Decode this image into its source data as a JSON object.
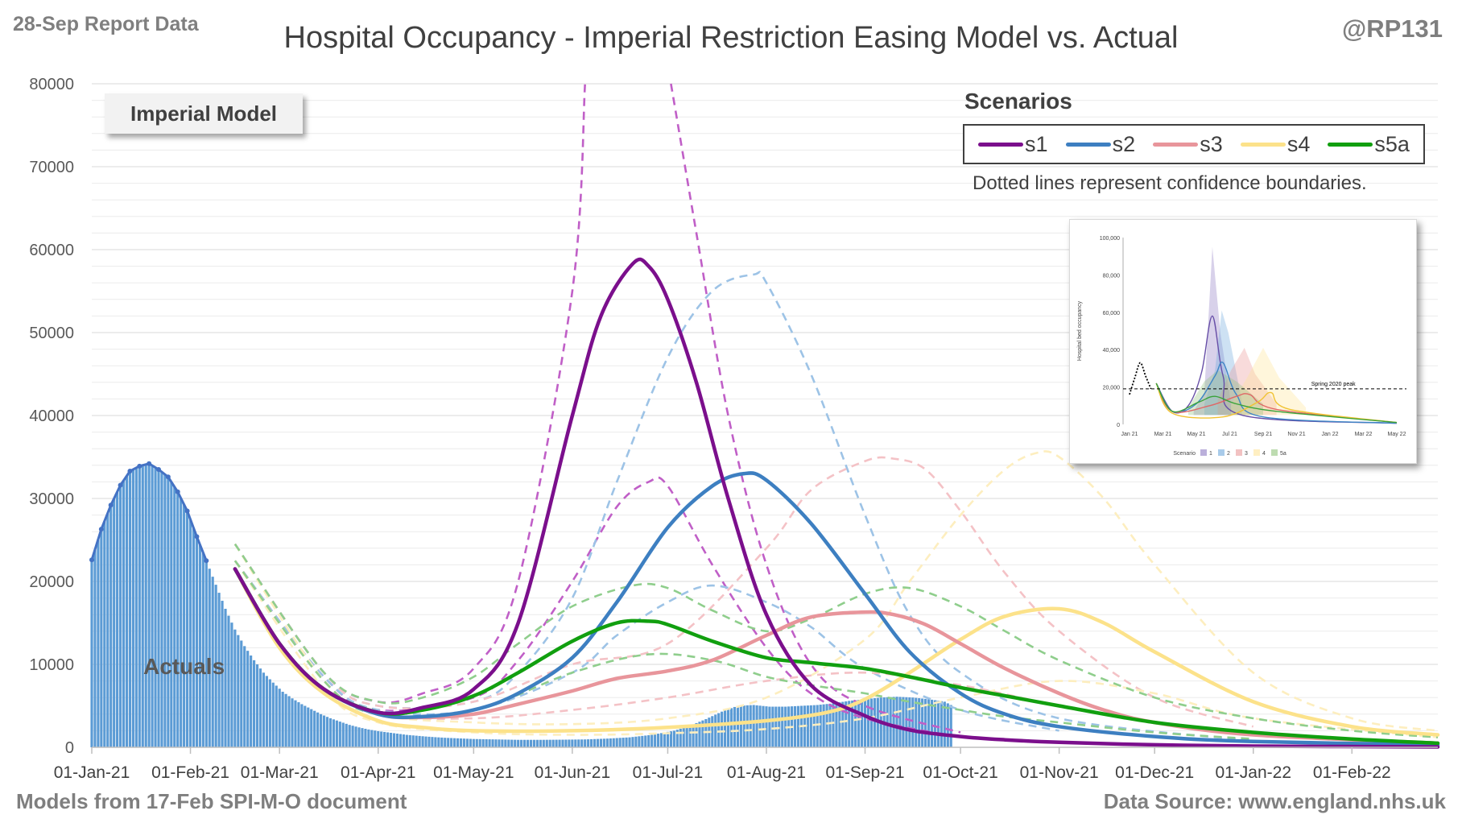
{
  "header": {
    "report_label": "28-Sep Report Data",
    "title": "Hospital Occupancy - Imperial Restriction Easing Model vs. Actual",
    "handle": "@RP131"
  },
  "footer": {
    "models_note": "Models from 17-Feb SPI-M-O document",
    "data_source": "Data Source: www.england.nhs.uk"
  },
  "annotations": {
    "model_badge": "Imperial Model",
    "actuals_label": "Actuals"
  },
  "legend": {
    "title": "Scenarios",
    "note": "Dotted lines represent confidence boundaries.",
    "items": [
      {
        "label": "s1",
        "color": "#7b0f8c"
      },
      {
        "label": "s2",
        "color": "#3d7fc1"
      },
      {
        "label": "s3",
        "color": "#e8959b"
      },
      {
        "label": "s4",
        "color": "#fce28a"
      },
      {
        "label": "s5a",
        "color": "#119f0f"
      }
    ]
  },
  "inset": {
    "ylabel": "Hospital bed occupancy",
    "yticks": [
      "0",
      "20,000",
      "40,000",
      "60,000",
      "80,000",
      "100,000"
    ],
    "xticks": [
      "Jan 21",
      "Mar 21",
      "May 21",
      "Jul 21",
      "Sep 21",
      "Nov 21",
      "Jan 22",
      "Mar 22",
      "May 22"
    ],
    "peak_label": "Spring 2020 peak",
    "legend_title": "Scenario",
    "legend_items": [
      "1",
      "2",
      "3",
      "4",
      "5a"
    ]
  },
  "chart_data": {
    "type": "line",
    "title": "Hospital Occupancy - Imperial Restriction Easing Model vs. Actual",
    "x_type": "date",
    "xlim": [
      "2021-01-01",
      "2022-02-28"
    ],
    "ylim": [
      0,
      80000
    ],
    "y_ticks": [
      0,
      10000,
      20000,
      30000,
      40000,
      50000,
      60000,
      70000,
      80000
    ],
    "x_ticks": [
      {
        "date": "2021-01-01",
        "label": "01-Jan-21"
      },
      {
        "date": "2021-02-01",
        "label": "01-Feb-21"
      },
      {
        "date": "2021-03-01",
        "label": "01-Mar-21"
      },
      {
        "date": "2021-04-01",
        "label": "01-Apr-21"
      },
      {
        "date": "2021-05-01",
        "label": "01-May-21"
      },
      {
        "date": "2021-06-01",
        "label": "01-Jun-21"
      },
      {
        "date": "2021-07-01",
        "label": "01-Jul-21"
      },
      {
        "date": "2021-08-01",
        "label": "01-Aug-21"
      },
      {
        "date": "2021-09-01",
        "label": "01-Sep-21"
      },
      {
        "date": "2021-10-01",
        "label": "01-Oct-21"
      },
      {
        "date": "2021-11-01",
        "label": "01-Nov-21"
      },
      {
        "date": "2021-12-01",
        "label": "01-Dec-21"
      },
      {
        "date": "2022-01-01",
        "label": "01-Jan-22"
      },
      {
        "date": "2022-02-01",
        "label": "01-Feb-22"
      }
    ],
    "grid": true,
    "legend_position": "top-right",
    "actuals": {
      "name": "Actuals",
      "color": "#5b9bd5",
      "dates": [
        "2021-01-01",
        "2021-01-04",
        "2021-01-07",
        "2021-01-10",
        "2021-01-13",
        "2021-01-16",
        "2021-01-19",
        "2021-01-22",
        "2021-01-25",
        "2021-01-28",
        "2021-01-31",
        "2021-02-03",
        "2021-02-06",
        "2021-02-09",
        "2021-02-12",
        "2021-02-15",
        "2021-02-18",
        "2021-02-21",
        "2021-02-24",
        "2021-02-27",
        "2021-03-02",
        "2021-03-05",
        "2021-03-08",
        "2021-03-11",
        "2021-03-14",
        "2021-03-17",
        "2021-03-20",
        "2021-03-23",
        "2021-03-26",
        "2021-03-29",
        "2021-04-01",
        "2021-04-04",
        "2021-04-07",
        "2021-04-10",
        "2021-04-13",
        "2021-04-16",
        "2021-04-19",
        "2021-04-22",
        "2021-04-25",
        "2021-04-28",
        "2021-05-01",
        "2021-05-08",
        "2021-05-15",
        "2021-05-22",
        "2021-05-29",
        "2021-06-05",
        "2021-06-12",
        "2021-06-19",
        "2021-06-26",
        "2021-07-03",
        "2021-07-08",
        "2021-07-13",
        "2021-07-18",
        "2021-07-23",
        "2021-07-28",
        "2021-08-02",
        "2021-08-07",
        "2021-08-12",
        "2021-08-17",
        "2021-08-22",
        "2021-08-27",
        "2021-09-01",
        "2021-09-06",
        "2021-09-11",
        "2021-09-16",
        "2021-09-21",
        "2021-09-26",
        "2021-09-28"
      ],
      "values": [
        22600,
        26300,
        29200,
        31600,
        33300,
        33900,
        34200,
        33500,
        32600,
        30800,
        28500,
        25400,
        22500,
        19600,
        16700,
        14200,
        12200,
        10500,
        9000,
        7800,
        6700,
        5900,
        5200,
        4600,
        4000,
        3500,
        3100,
        2700,
        2400,
        2150,
        1950,
        1800,
        1650,
        1500,
        1400,
        1300,
        1220,
        1150,
        1100,
        1050,
        1000,
        950,
        900,
        900,
        920,
        950,
        1050,
        1200,
        1500,
        2000,
        2600,
        3400,
        4300,
        5000,
        5100,
        4900,
        4900,
        5000,
        5100,
        5300,
        5600,
        5800,
        6000,
        6100,
        6000,
        5800,
        5500,
        5100
      ]
    },
    "series": [
      {
        "name": "s1",
        "color": "#7b0f8c",
        "dates": [
          "2021-02-15",
          "2021-03-01",
          "2021-03-15",
          "2021-04-01",
          "2021-04-15",
          "2021-05-01",
          "2021-05-15",
          "2021-06-01",
          "2021-06-10",
          "2021-06-20",
          "2021-06-25",
          "2021-07-01",
          "2021-07-10",
          "2021-07-20",
          "2021-08-01",
          "2021-08-15",
          "2021-09-01",
          "2021-09-15",
          "2021-10-01",
          "2021-10-15",
          "2021-11-01",
          "2021-12-01",
          "2022-01-01",
          "2022-02-28"
        ],
        "values": [
          21500,
          12500,
          7000,
          4200,
          4800,
          7000,
          15000,
          40000,
          52000,
          58300,
          58000,
          54000,
          44000,
          30000,
          16000,
          7500,
          3800,
          2100,
          1300,
          900,
          600,
          300,
          150,
          50
        ]
      },
      {
        "name": "s2",
        "color": "#3d7fc1",
        "dates": [
          "2021-02-15",
          "2021-03-01",
          "2021-03-15",
          "2021-04-01",
          "2021-04-15",
          "2021-05-01",
          "2021-05-15",
          "2021-06-01",
          "2021-06-15",
          "2021-07-01",
          "2021-07-15",
          "2021-07-25",
          "2021-08-01",
          "2021-08-15",
          "2021-09-01",
          "2021-09-15",
          "2021-10-01",
          "2021-10-15",
          "2021-11-01",
          "2021-12-01",
          "2022-01-01",
          "2022-02-28"
        ],
        "values": [
          21500,
          12500,
          7000,
          4000,
          3700,
          4500,
          6500,
          10800,
          17500,
          26500,
          31500,
          33000,
          32200,
          27000,
          18500,
          11500,
          6500,
          4000,
          2500,
          1300,
          700,
          300
        ]
      },
      {
        "name": "s3",
        "color": "#e8959b",
        "dates": [
          "2021-02-15",
          "2021-03-01",
          "2021-03-15",
          "2021-04-01",
          "2021-04-15",
          "2021-05-01",
          "2021-05-15",
          "2021-06-01",
          "2021-06-15",
          "2021-07-01",
          "2021-07-15",
          "2021-08-01",
          "2021-08-15",
          "2021-09-01",
          "2021-09-10",
          "2021-09-20",
          "2021-10-01",
          "2021-10-15",
          "2021-11-01",
          "2021-11-15",
          "2021-12-01",
          "2022-01-01",
          "2022-02-28"
        ],
        "values": [
          21500,
          12500,
          7000,
          4000,
          3600,
          4000,
          5200,
          6800,
          8300,
          9200,
          10500,
          13500,
          15700,
          16300,
          16000,
          14800,
          12500,
          9500,
          6500,
          4500,
          3000,
          1500,
          500
        ]
      },
      {
        "name": "s4",
        "color": "#fce28a",
        "dates": [
          "2021-02-15",
          "2021-03-01",
          "2021-03-15",
          "2021-04-01",
          "2021-04-15",
          "2021-05-01",
          "2021-06-01",
          "2021-07-01",
          "2021-08-01",
          "2021-08-20",
          "2021-09-01",
          "2021-09-15",
          "2021-10-01",
          "2021-10-15",
          "2021-11-01",
          "2021-11-15",
          "2021-12-01",
          "2022-01-01",
          "2022-02-01",
          "2022-02-28"
        ],
        "values": [
          21500,
          12000,
          6500,
          3200,
          2400,
          2000,
          2000,
          2400,
          3200,
          4200,
          5800,
          9000,
          13000,
          15800,
          16700,
          15000,
          11500,
          5500,
          2500,
          1500
        ]
      },
      {
        "name": "s5a",
        "color": "#119f0f",
        "dates": [
          "2021-02-15",
          "2021-03-01",
          "2021-03-15",
          "2021-04-01",
          "2021-04-15",
          "2021-05-01",
          "2021-05-15",
          "2021-06-01",
          "2021-06-15",
          "2021-06-25",
          "2021-07-01",
          "2021-07-15",
          "2021-08-01",
          "2021-08-15",
          "2021-09-01",
          "2021-09-15",
          "2021-10-01",
          "2021-10-15",
          "2021-11-01",
          "2021-12-01",
          "2022-01-01",
          "2022-02-01",
          "2022-02-28"
        ],
        "values": [
          21500,
          12500,
          7000,
          4200,
          4500,
          6200,
          9000,
          12800,
          15000,
          15200,
          14800,
          12800,
          10800,
          10200,
          9500,
          8500,
          7200,
          6200,
          5000,
          3000,
          1800,
          1000,
          500
        ]
      }
    ],
    "bounds": [
      {
        "name": "s1 upper",
        "color": "#c05fc7",
        "dates": [
          "2021-02-15",
          "2021-03-15",
          "2021-04-01",
          "2021-04-15",
          "2021-05-01",
          "2021-05-15",
          "2021-06-01",
          "2021-06-05"
        ],
        "values": [
          24500,
          9000,
          5500,
          6500,
          9500,
          20000,
          55000,
          80000
        ]
      },
      {
        "name": "s1 upper",
        "color": "#c05fc7",
        "dates": [
          "2021-07-02",
          "2021-07-10",
          "2021-07-20",
          "2021-08-01",
          "2021-08-15",
          "2021-09-01",
          "2021-10-01"
        ],
        "values": [
          80000,
          62000,
          40000,
          22000,
          10000,
          5000,
          1800
        ]
      },
      {
        "name": "s1 lower",
        "color": "#c05fc7",
        "dates": [
          "2021-02-15",
          "2021-03-15",
          "2021-04-01",
          "2021-05-01",
          "2021-05-15",
          "2021-06-01",
          "2021-06-15",
          "2021-06-25",
          "2021-07-01",
          "2021-07-15",
          "2021-08-01",
          "2021-08-15",
          "2021-09-01",
          "2021-10-01"
        ],
        "values": [
          22500,
          8500,
          4500,
          6000,
          10500,
          20000,
          29000,
          32000,
          31500,
          22000,
          12000,
          6500,
          3500,
          1200
        ]
      },
      {
        "name": "s2 upper",
        "color": "#9dc3e6",
        "dates": [
          "2021-02-15",
          "2021-03-15",
          "2021-04-01",
          "2021-05-01",
          "2021-05-15",
          "2021-06-01",
          "2021-06-15",
          "2021-07-01",
          "2021-07-15",
          "2021-07-28",
          "2021-08-01",
          "2021-08-15",
          "2021-09-01",
          "2021-09-15",
          "2021-10-01",
          "2021-11-01",
          "2022-01-01"
        ],
        "values": [
          24500,
          9000,
          5000,
          5500,
          9000,
          18000,
          32000,
          47000,
          55000,
          57000,
          56000,
          45000,
          28000,
          16000,
          9000,
          3500,
          800
        ]
      },
      {
        "name": "s2 lower",
        "color": "#9dc3e6",
        "dates": [
          "2021-02-15",
          "2021-03-15",
          "2021-04-01",
          "2021-05-01",
          "2021-06-01",
          "2021-06-15",
          "2021-07-01",
          "2021-07-15",
          "2021-08-01",
          "2021-08-15",
          "2021-09-01",
          "2021-10-01",
          "2021-11-01"
        ],
        "values": [
          22500,
          8500,
          4500,
          4500,
          9000,
          13500,
          17500,
          19500,
          17500,
          14500,
          9500,
          4500,
          2000
        ]
      },
      {
        "name": "s3 upper",
        "color": "#f4c2c6",
        "dates": [
          "2021-02-15",
          "2021-03-15",
          "2021-04-01",
          "2021-05-01",
          "2021-06-01",
          "2021-07-01",
          "2021-08-01",
          "2021-08-15",
          "2021-09-01",
          "2021-09-10",
          "2021-09-20",
          "2021-10-01",
          "2021-10-15",
          "2021-11-01",
          "2021-12-01",
          "2022-01-01"
        ],
        "values": [
          24500,
          9000,
          5000,
          5500,
          10000,
          12500,
          24000,
          31000,
          34500,
          34800,
          33500,
          28500,
          21000,
          14000,
          6000,
          2500
        ]
      },
      {
        "name": "s3 lower",
        "color": "#f4c2c6",
        "dates": [
          "2021-02-15",
          "2021-03-15",
          "2021-04-01",
          "2021-05-01",
          "2021-06-01",
          "2021-07-01",
          "2021-08-01",
          "2021-09-01",
          "2021-10-01",
          "2021-11-01",
          "2021-12-01",
          "2022-01-01"
        ],
        "values": [
          22500,
          8000,
          4000,
          3500,
          4500,
          6000,
          8000,
          9000,
          7500,
          5000,
          3000,
          1500
        ]
      },
      {
        "name": "s4 upper",
        "color": "#fdeebf",
        "dates": [
          "2021-02-15",
          "2021-03-15",
          "2021-04-01",
          "2021-05-01",
          "2021-06-01",
          "2021-07-01",
          "2021-08-01",
          "2021-09-01",
          "2021-09-15",
          "2021-10-01",
          "2021-10-15",
          "2021-10-25",
          "2021-11-01",
          "2021-11-15",
          "2021-12-01",
          "2022-01-01",
          "2022-02-01",
          "2022-02-28"
        ],
        "values": [
          24500,
          8000,
          4000,
          3000,
          2800,
          3500,
          6000,
          13000,
          20000,
          28000,
          33500,
          35500,
          35000,
          30000,
          22000,
          9000,
          3500,
          2000
        ]
      },
      {
        "name": "s4 lower",
        "color": "#fdeebf",
        "dates": [
          "2021-02-15",
          "2021-03-15",
          "2021-04-01",
          "2021-05-01",
          "2021-06-01",
          "2021-07-01",
          "2021-08-01",
          "2021-09-01",
          "2021-10-01",
          "2021-11-01",
          "2021-12-01",
          "2022-01-01",
          "2022-02-28"
        ],
        "values": [
          22500,
          7000,
          3000,
          1800,
          1500,
          1700,
          2200,
          3500,
          6000,
          8000,
          6500,
          3500,
          1200
        ]
      },
      {
        "name": "s5a upper",
        "color": "#8fce8c",
        "dates": [
          "2021-02-15",
          "2021-03-15",
          "2021-04-01",
          "2021-04-15",
          "2021-05-01",
          "2021-05-15",
          "2021-06-01",
          "2021-06-20",
          "2021-07-01",
          "2021-07-15",
          "2021-08-01",
          "2021-08-15",
          "2021-09-01",
          "2021-09-15",
          "2021-10-01",
          "2021-10-15",
          "2021-11-01",
          "2021-12-01",
          "2022-01-01",
          "2022-02-01",
          "2022-02-28"
        ],
        "values": [
          24500,
          9000,
          5500,
          6000,
          8500,
          12500,
          17000,
          19500,
          19200,
          16500,
          14000,
          15500,
          18500,
          19200,
          17000,
          14000,
          10500,
          6000,
          3500,
          2000,
          1200
        ]
      },
      {
        "name": "s5a lower",
        "color": "#8fce8c",
        "dates": [
          "2021-02-15",
          "2021-03-15",
          "2021-04-01",
          "2021-05-01",
          "2021-06-01",
          "2021-06-25",
          "2021-07-15",
          "2021-08-01",
          "2021-08-15",
          "2021-09-01",
          "2021-09-15",
          "2021-10-01",
          "2021-10-15",
          "2021-11-01",
          "2021-12-01",
          "2022-01-01"
        ],
        "values": [
          22500,
          8000,
          4000,
          4500,
          9000,
          11200,
          10500,
          8500,
          7500,
          6500,
          5500,
          4500,
          3700,
          3000,
          1800,
          1000
        ]
      }
    ]
  }
}
